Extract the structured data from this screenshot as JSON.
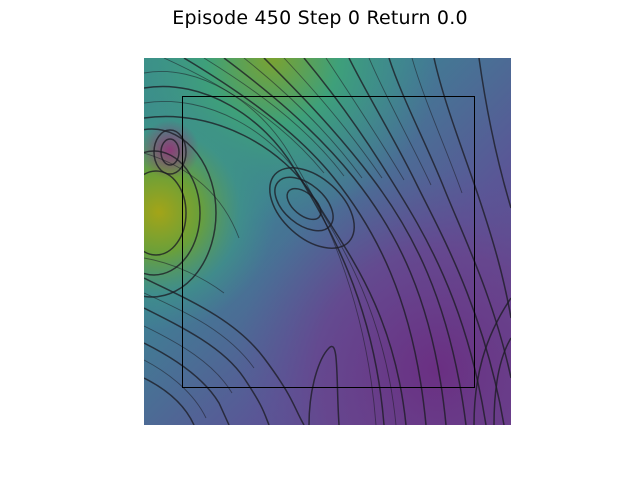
{
  "figure": {
    "title": "Episode 450 Step 0 Return 0.0"
  },
  "plot": {
    "colormap": "viridis",
    "colors": {
      "low": "#6c3e8b",
      "mid": "#3f8f8c",
      "high": "#9fa51c",
      "contour": "#1c1c24",
      "boundary": "#000000"
    }
  }
}
